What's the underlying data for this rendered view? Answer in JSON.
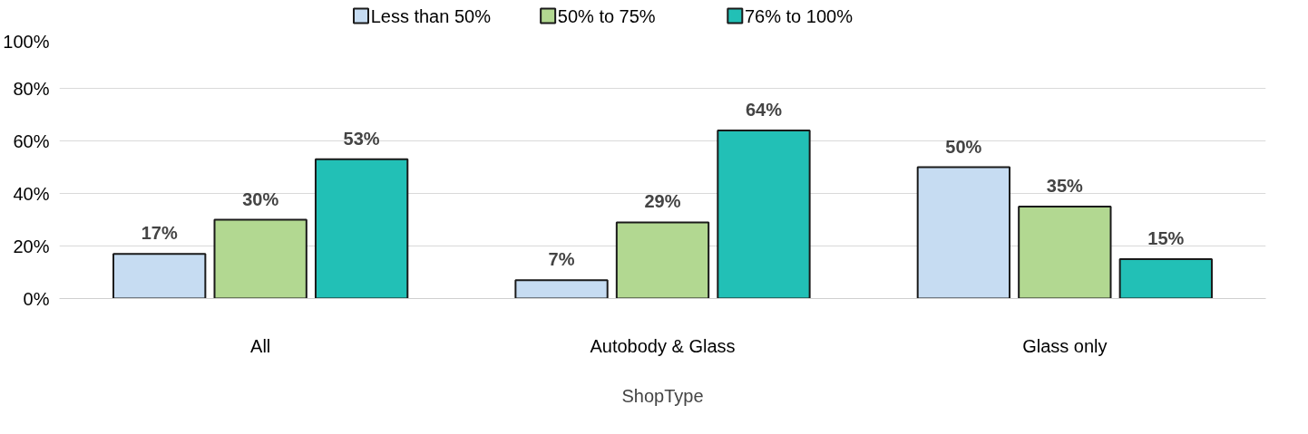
{
  "chart_data": {
    "type": "bar",
    "xlabel": "ShopType",
    "categories": [
      "All",
      "Autobody & Glass",
      "Glass only"
    ],
    "series": [
      {
        "name": "Less than 50%",
        "color": "#c6dcf2",
        "values": [
          17,
          7,
          50
        ],
        "value_labels": [
          "17%",
          "7%",
          "50%"
        ]
      },
      {
        "name": "50% to 75%",
        "color": "#b2d891",
        "values": [
          30,
          29,
          35
        ],
        "value_labels": [
          "30%",
          "29%",
          "35%"
        ]
      },
      {
        "name": "76% to 100%",
        "color": "#22c0b6",
        "values": [
          53,
          64,
          15
        ],
        "value_labels": [
          "53%",
          "64%",
          "15%"
        ]
      }
    ],
    "ylim": [
      0,
      100
    ],
    "yticks": [
      {
        "value": 0,
        "label": "0%"
      },
      {
        "value": 20,
        "label": "20%"
      },
      {
        "value": 40,
        "label": "40%"
      },
      {
        "value": 60,
        "label": "60%"
      },
      {
        "value": 80,
        "label": "80%"
      },
      {
        "value": 100,
        "label": "100%"
      }
    ],
    "grid": "y",
    "legend": "top"
  }
}
